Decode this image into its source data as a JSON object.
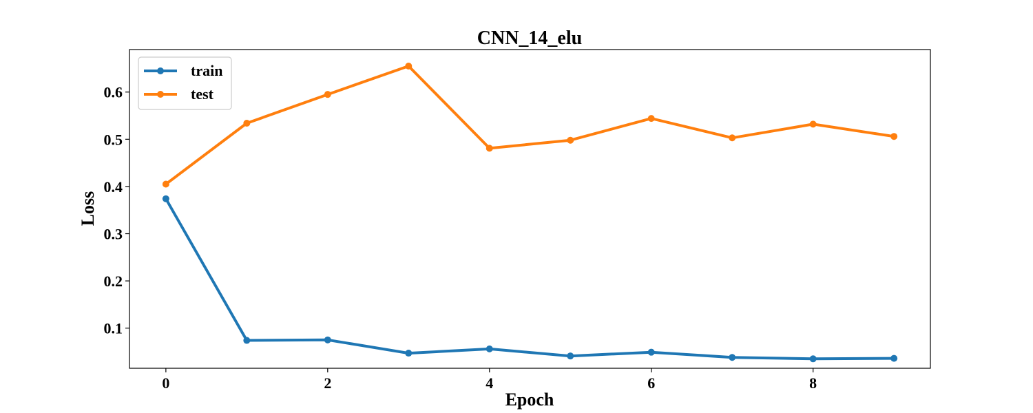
{
  "chart_data": {
    "type": "line",
    "title": "CNN_14_elu",
    "xlabel": "Epoch",
    "ylabel": "Loss",
    "x": [
      0,
      1,
      2,
      3,
      4,
      5,
      6,
      7,
      8,
      9
    ],
    "xlim": [
      -0.45,
      9.45
    ],
    "ylim": [
      0.015,
      0.69
    ],
    "xticks": [
      "0",
      "2",
      "4",
      "6",
      "8"
    ],
    "yticks": [
      "0.1",
      "0.2",
      "0.3",
      "0.4",
      "0.5",
      "0.6"
    ],
    "grid": false,
    "legend_position": "upper-left",
    "series": [
      {
        "name": "train",
        "color": "#1f77b4",
        "values": [
          0.374,
          0.074,
          0.075,
          0.047,
          0.056,
          0.041,
          0.049,
          0.038,
          0.035,
          0.036
        ]
      },
      {
        "name": "test",
        "color": "#ff7f0e",
        "values": [
          0.405,
          0.534,
          0.595,
          0.655,
          0.481,
          0.498,
          0.544,
          0.503,
          0.532,
          0.506
        ]
      }
    ]
  }
}
